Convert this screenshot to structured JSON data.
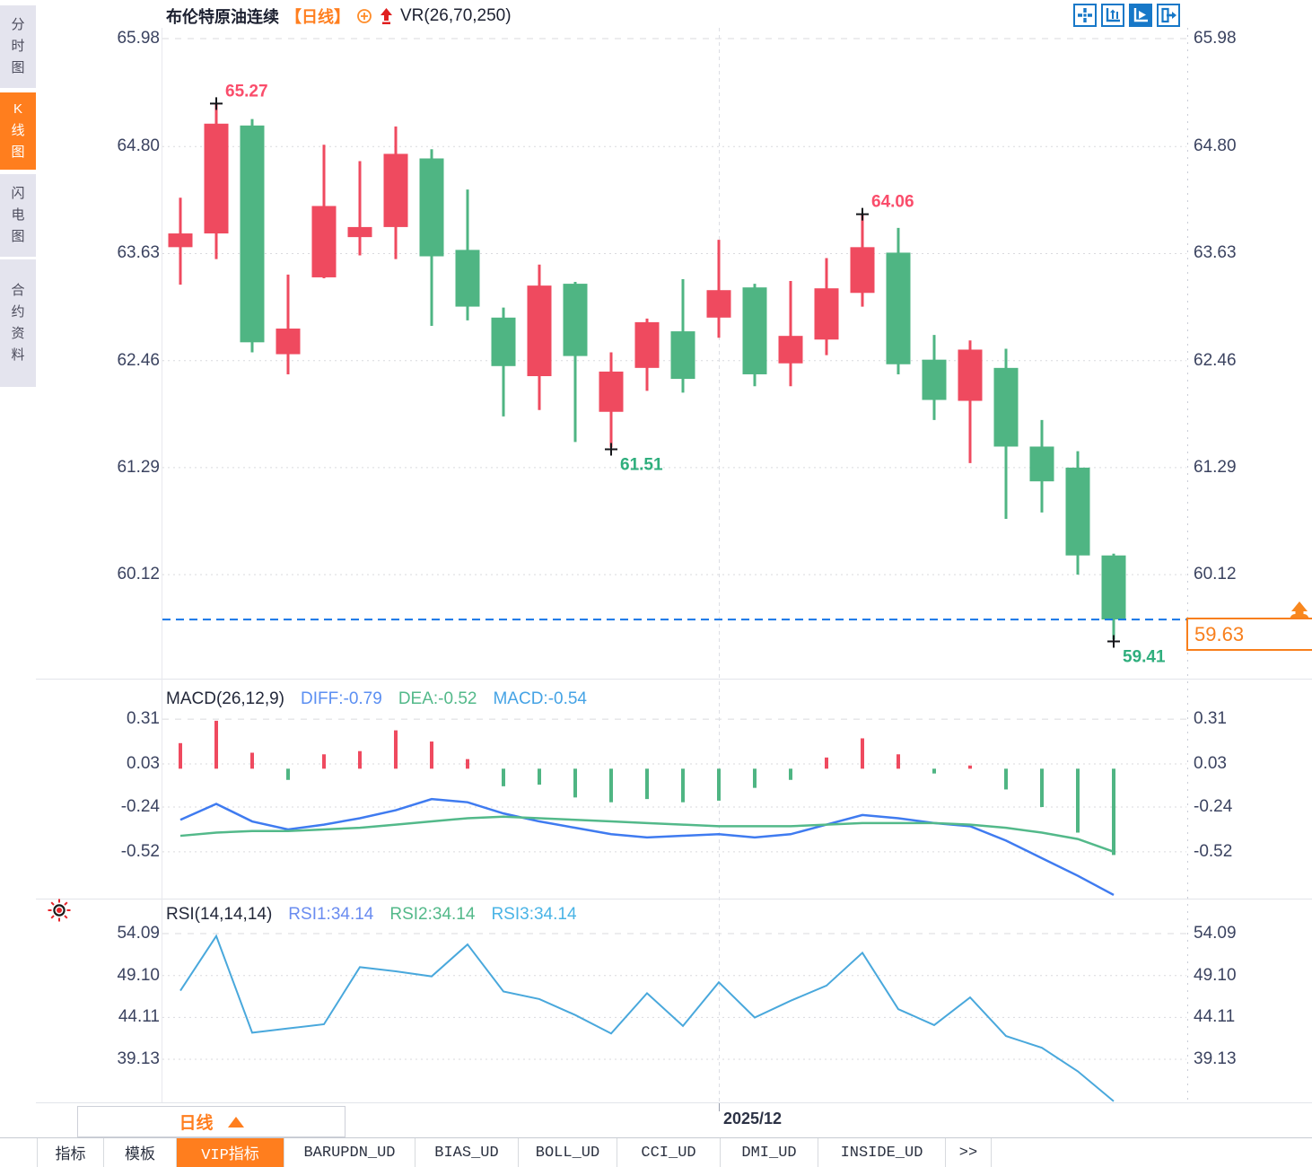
{
  "header": {
    "symbol": "布伦特原油连续",
    "period_tag": "【日线】",
    "indicator_label": "VR(26,70,250)"
  },
  "toolbar": {
    "icons": [
      {
        "name": "crosshair-move-icon",
        "active": false
      },
      {
        "name": "fit-y-axis-icon",
        "active": false
      },
      {
        "name": "auto-scroll-chart-icon",
        "active": true
      },
      {
        "name": "pan-to-latest-icon",
        "active": false
      }
    ]
  },
  "sidebar": {
    "items": [
      {
        "label": "分时图",
        "active": false
      },
      {
        "label": "K线图",
        "active": true
      },
      {
        "label": "闪电图",
        "active": false
      },
      {
        "label": "合约资料",
        "active": false
      }
    ]
  },
  "axes": {
    "price": [
      "65.98",
      "64.80",
      "63.63",
      "62.46",
      "61.29",
      "60.12"
    ],
    "macd": [
      "0.31",
      "0.03",
      "-0.24",
      "-0.52"
    ],
    "rsi": [
      "54.09",
      "49.10",
      "44.11",
      "39.13"
    ]
  },
  "macd_header": {
    "title": "MACD(26,12,9)",
    "diff": "DIFF:-0.79",
    "dea": "DEA:-0.52",
    "macd": "MACD:-0.54"
  },
  "rsi_header": {
    "title": "RSI(14,14,14)",
    "rsi1": "RSI1:34.14",
    "rsi2": "RSI2:34.14",
    "rsi3": "RSI3:34.14"
  },
  "price_box": {
    "value": "59.63"
  },
  "bottom": {
    "period_label": "日线",
    "date_label": "2025/12",
    "tabs": [
      {
        "label": "指标",
        "active": false
      },
      {
        "label": "模板",
        "active": false
      },
      {
        "label": "VIP指标",
        "active": true
      },
      {
        "label": "BARUPDN_UD",
        "active": false
      },
      {
        "label": "BIAS_UD",
        "active": false
      },
      {
        "label": "BOLL_UD",
        "active": false
      },
      {
        "label": "CCI_UD",
        "active": false
      },
      {
        "label": "DMI_UD",
        "active": false
      },
      {
        "label": "INSIDE_UD",
        "active": false
      },
      {
        "label": ">>",
        "active": false
      }
    ]
  },
  "colors": {
    "up": "#ef4a5f",
    "down": "#4fb583",
    "orange": "#ff7e1e",
    "diff_line": "#3f7bf0",
    "dea_line": "#53b98a",
    "rsi_line": "#49a8dc",
    "current_line": "#1576e8",
    "high_label": "#fa4d6b",
    "low_label": "#2fae7d",
    "grid": "#d9dade",
    "axis_text": "#3b4360",
    "marker": "#15161a"
  },
  "chart_data": {
    "type": "candlestick",
    "title": "布伦特原油连续 日线",
    "legend_position": "top-left-of-each-panel",
    "grid": true,
    "panels": [
      {
        "name": "price",
        "type": "candlestick",
        "y_ticks": [
          65.98,
          64.8,
          63.63,
          62.46,
          61.29,
          60.12
        ],
        "current_price": 59.63,
        "candles_ohlc": [
          [
            63.7,
            64.24,
            63.29,
            63.85
          ],
          [
            63.85,
            65.27,
            63.57,
            65.05
          ],
          [
            65.03,
            65.1,
            62.55,
            62.66
          ],
          [
            62.53,
            63.4,
            62.31,
            62.81
          ],
          [
            63.37,
            64.82,
            63.36,
            64.15
          ],
          [
            63.81,
            64.64,
            63.61,
            63.92
          ],
          [
            63.92,
            65.02,
            63.57,
            64.72
          ],
          [
            64.67,
            64.77,
            62.84,
            63.6
          ],
          [
            63.67,
            64.33,
            62.9,
            63.05
          ],
          [
            62.93,
            63.04,
            61.85,
            62.4
          ],
          [
            62.29,
            63.51,
            61.92,
            63.28
          ],
          [
            63.3,
            63.32,
            61.57,
            62.51
          ],
          [
            61.9,
            62.55,
            61.51,
            62.34
          ],
          [
            62.38,
            62.92,
            62.13,
            62.88
          ],
          [
            62.78,
            63.35,
            62.11,
            62.26
          ],
          [
            62.93,
            63.78,
            62.71,
            63.23
          ],
          [
            63.26,
            63.3,
            62.18,
            62.31
          ],
          [
            62.43,
            63.33,
            62.18,
            62.73
          ],
          [
            62.69,
            63.58,
            62.52,
            63.25
          ],
          [
            63.2,
            64.06,
            63.05,
            63.7
          ],
          [
            63.64,
            63.91,
            62.31,
            62.42
          ],
          [
            62.47,
            62.74,
            61.81,
            62.03
          ],
          [
            62.02,
            62.68,
            61.34,
            62.58
          ],
          [
            62.38,
            62.59,
            60.73,
            61.52
          ],
          [
            61.52,
            61.81,
            60.8,
            61.14
          ],
          [
            61.29,
            61.47,
            60.12,
            60.33
          ],
          [
            60.33,
            60.35,
            59.41,
            59.63
          ]
        ],
        "annotations": [
          {
            "i": 1,
            "text": "65.27",
            "kind": "high"
          },
          {
            "i": 19,
            "text": "64.06",
            "kind": "high"
          },
          {
            "i": 12,
            "text": "61.51",
            "kind": "low"
          },
          {
            "i": 26,
            "text": "59.41",
            "kind": "low"
          }
        ]
      },
      {
        "name": "macd",
        "type": "bar+line",
        "y_ticks": [
          0.31,
          0.03,
          -0.24,
          -0.52
        ],
        "hist": [
          0.16,
          0.3,
          0.1,
          -0.07,
          0.09,
          0.11,
          0.24,
          0.17,
          0.06,
          -0.11,
          -0.1,
          -0.18,
          -0.21,
          -0.19,
          -0.21,
          -0.2,
          -0.12,
          -0.07,
          0.07,
          0.19,
          0.09,
          -0.03,
          0.02,
          -0.13,
          -0.24,
          -0.4,
          -0.54
        ],
        "diff": [
          -0.32,
          -0.22,
          -0.33,
          -0.38,
          -0.35,
          -0.31,
          -0.26,
          -0.19,
          -0.21,
          -0.28,
          -0.33,
          -0.37,
          -0.41,
          -0.43,
          -0.42,
          -0.41,
          -0.43,
          -0.41,
          -0.35,
          -0.29,
          -0.31,
          -0.34,
          -0.36,
          -0.45,
          -0.56,
          -0.67,
          -0.79
        ],
        "dea": [
          -0.42,
          -0.4,
          -0.39,
          -0.39,
          -0.38,
          -0.37,
          -0.35,
          -0.33,
          -0.31,
          -0.3,
          -0.31,
          -0.32,
          -0.33,
          -0.34,
          -0.35,
          -0.36,
          -0.36,
          -0.36,
          -0.35,
          -0.34,
          -0.34,
          -0.34,
          -0.35,
          -0.37,
          -0.4,
          -0.44,
          -0.52
        ]
      },
      {
        "name": "rsi",
        "type": "line",
        "y_ticks": [
          54.09,
          49.1,
          44.11,
          39.13
        ],
        "rsi": [
          47.3,
          53.8,
          42.3,
          42.8,
          43.3,
          50.1,
          49.6,
          49.0,
          52.8,
          47.2,
          46.3,
          44.4,
          42.2,
          47.0,
          43.1,
          48.3,
          44.1,
          46.1,
          47.9,
          51.8,
          45.1,
          43.2,
          46.5,
          41.9,
          40.5,
          37.7,
          34.14
        ]
      }
    ],
    "x_axis": {
      "label": "2025/12",
      "gridline_index": 15
    }
  }
}
